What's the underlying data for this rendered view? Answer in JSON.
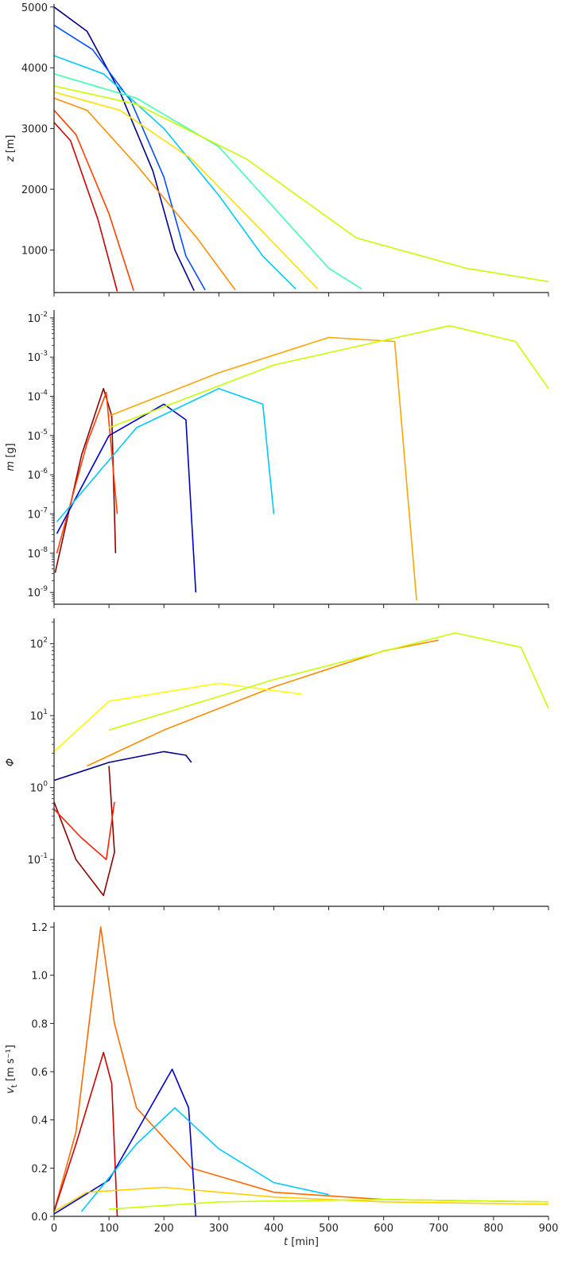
{
  "chart_data": [
    {
      "type": "line",
      "ylabel_var": "z",
      "ylabel_unit": "[m]",
      "yscale": "linear",
      "ylim": [
        300,
        5050
      ],
      "yticks": [
        1000,
        2000,
        3000,
        4000,
        5000
      ],
      "yticklabels": [
        "1000",
        "2000",
        "3000",
        "4000",
        "5000"
      ],
      "xlim": [
        0,
        900
      ],
      "xticks": [
        0,
        100,
        200,
        300,
        400,
        500,
        600,
        700,
        800,
        900
      ],
      "colormap": "jet",
      "series": [
        {
          "color": "#00008b",
          "x": [
            0,
            60,
            120,
            180,
            220,
            255
          ],
          "y": [
            5000,
            4600,
            3600,
            2300,
            1000,
            330
          ]
        },
        {
          "color": "#0050ff",
          "x": [
            0,
            70,
            140,
            200,
            240,
            275
          ],
          "y": [
            4700,
            4300,
            3450,
            2200,
            900,
            340
          ]
        },
        {
          "color": "#00c8ff",
          "x": [
            0,
            90,
            200,
            300,
            380,
            440
          ],
          "y": [
            4200,
            3900,
            3000,
            1900,
            900,
            360
          ]
        },
        {
          "color": "#40ffb0",
          "x": [
            0,
            150,
            300,
            420,
            500,
            560
          ],
          "y": [
            3900,
            3500,
            2700,
            1500,
            700,
            360
          ]
        },
        {
          "color": "#c8ff00",
          "x": [
            0,
            150,
            350,
            550,
            750,
            900
          ],
          "y": [
            3700,
            3400,
            2500,
            1200,
            700,
            480
          ]
        },
        {
          "color": "#ffe000",
          "x": [
            0,
            120,
            250,
            380,
            480
          ],
          "y": [
            3600,
            3300,
            2500,
            1300,
            360
          ]
        },
        {
          "color": "#ff9000",
          "x": [
            0,
            60,
            150,
            260,
            330
          ],
          "y": [
            3500,
            3300,
            2400,
            1200,
            340
          ]
        },
        {
          "color": "#ff4000",
          "x": [
            0,
            40,
            100,
            145
          ],
          "y": [
            3300,
            2900,
            1600,
            330
          ]
        },
        {
          "color": "#cc0000",
          "x": [
            0,
            30,
            80,
            115
          ],
          "y": [
            3100,
            2800,
            1500,
            320
          ]
        }
      ]
    },
    {
      "type": "line",
      "ylabel_var": "m",
      "ylabel_unit": "[g]",
      "yscale": "log",
      "ylim_log10": [
        -9.3,
        -1.8
      ],
      "yticks_exp": [
        -9,
        -8,
        -7,
        -6,
        -5,
        -4,
        -3,
        -2
      ],
      "xlim": [
        0,
        900
      ],
      "xticks": [
        0,
        100,
        200,
        300,
        400,
        500,
        600,
        700,
        800,
        900
      ],
      "colormap": "jet",
      "series": [
        {
          "color": "#8b0000",
          "x": [
            2,
            50,
            90,
            105,
            112
          ],
          "log10_y": [
            -8.5,
            -5.5,
            -3.8,
            -4.5,
            -8.0
          ]
        },
        {
          "color": "#ff4000",
          "x": [
            5,
            60,
            95,
            115
          ],
          "log10_y": [
            -8.0,
            -5.2,
            -3.9,
            -7.0
          ]
        },
        {
          "color": "#0000cd",
          "x": [
            5,
            100,
            200,
            240,
            258
          ],
          "log10_y": [
            -7.5,
            -5.0,
            -4.2,
            -4.6,
            -9.0
          ]
        },
        {
          "color": "#00c8ff",
          "x": [
            5,
            150,
            300,
            380,
            400
          ],
          "log10_y": [
            -7.2,
            -4.8,
            -3.8,
            -4.2,
            -7.0
          ]
        },
        {
          "color": "#ffa500",
          "x": [
            100,
            300,
            500,
            620,
            660
          ],
          "log10_y": [
            -4.5,
            -3.4,
            -2.5,
            -2.6,
            -9.2
          ]
        },
        {
          "color": "#c8ff00",
          "x": [
            100,
            400,
            720,
            840,
            900
          ],
          "log10_y": [
            -4.8,
            -3.2,
            -2.2,
            -2.6,
            -3.8
          ]
        }
      ]
    },
    {
      "type": "line",
      "ylabel_var": "Φ",
      "ylabel_unit": "",
      "yscale": "log",
      "ylim_log10": [
        -1.65,
        2.35
      ],
      "yticks_exp": [
        -1,
        0,
        1,
        2
      ],
      "xlim": [
        0,
        900
      ],
      "xticks": [
        0,
        100,
        200,
        300,
        400,
        500,
        600,
        700,
        800,
        900
      ],
      "colormap": "jet",
      "series": [
        {
          "color": "#8b0000",
          "x": [
            0,
            40,
            90,
            110,
            100
          ],
          "log10_y": [
            -0.2,
            -1.0,
            -1.5,
            -0.9,
            0.3
          ]
        },
        {
          "color": "#ff2000",
          "x": [
            0,
            50,
            95,
            110
          ],
          "log10_y": [
            -0.3,
            -0.7,
            -1.0,
            -0.2
          ]
        },
        {
          "color": "#ff8c00",
          "x": [
            60,
            200,
            400,
            600,
            700
          ],
          "log10_y": [
            0.3,
            0.8,
            1.4,
            1.9,
            2.05
          ]
        },
        {
          "color": "#ffff00",
          "x": [
            0,
            100,
            300,
            450
          ],
          "log10_y": [
            0.5,
            1.2,
            1.45,
            1.3
          ]
        },
        {
          "color": "#00008b",
          "x": [
            0,
            100,
            200,
            240,
            250
          ],
          "log10_y": [
            0.1,
            0.35,
            0.5,
            0.45,
            0.35
          ]
        },
        {
          "color": "#c8ff00",
          "x": [
            100,
            400,
            730,
            850,
            900
          ],
          "log10_y": [
            0.8,
            1.5,
            2.15,
            1.95,
            1.1
          ]
        }
      ]
    },
    {
      "type": "line",
      "ylabel_var": "v",
      "ylabel_sub": "t",
      "ylabel_unit": "[m s⁻¹]",
      "yscale": "linear",
      "ylim": [
        0,
        1.22
      ],
      "yticks": [
        0,
        0.2,
        0.4,
        0.6,
        0.8,
        1.0,
        1.2
      ],
      "yticklabels": [
        "0.0",
        "0.2",
        "0.4",
        "0.6",
        "0.8",
        "1.0",
        "1.2"
      ],
      "xlim": [
        0,
        900
      ],
      "xticks": [
        0,
        100,
        200,
        300,
        400,
        500,
        600,
        700,
        800,
        900
      ],
      "xticklabels": [
        "0",
        "100",
        "200",
        "300",
        "400",
        "500",
        "600",
        "700",
        "800",
        "900"
      ],
      "xlabel_var": "t",
      "xlabel_unit": "[min]",
      "colormap": "jet",
      "series": [
        {
          "color": "#ff6a00",
          "x": [
            0,
            40,
            85,
            110,
            150,
            250,
            400,
            600,
            900
          ],
          "y": [
            0.02,
            0.35,
            1.2,
            0.8,
            0.45,
            0.2,
            0.1,
            0.07,
            0.06
          ]
        },
        {
          "color": "#cc0000",
          "x": [
            0,
            40,
            90,
            105,
            115
          ],
          "y": [
            0.02,
            0.3,
            0.68,
            0.55,
            0.0
          ]
        },
        {
          "color": "#0000cd",
          "x": [
            0,
            100,
            200,
            215,
            245,
            258
          ],
          "y": [
            0.01,
            0.15,
            0.55,
            0.61,
            0.45,
            0.0
          ]
        },
        {
          "color": "#00c8ff",
          "x": [
            50,
            150,
            220,
            300,
            400,
            500
          ],
          "y": [
            0.02,
            0.3,
            0.45,
            0.28,
            0.14,
            0.09
          ]
        },
        {
          "color": "#ffd000",
          "x": [
            0,
            60,
            200,
            400,
            600,
            900
          ],
          "y": [
            0.02,
            0.1,
            0.12,
            0.08,
            0.06,
            0.05
          ]
        },
        {
          "color": "#c8ff00",
          "x": [
            100,
            300,
            600,
            900
          ],
          "y": [
            0.03,
            0.06,
            0.07,
            0.06
          ]
        }
      ]
    }
  ]
}
